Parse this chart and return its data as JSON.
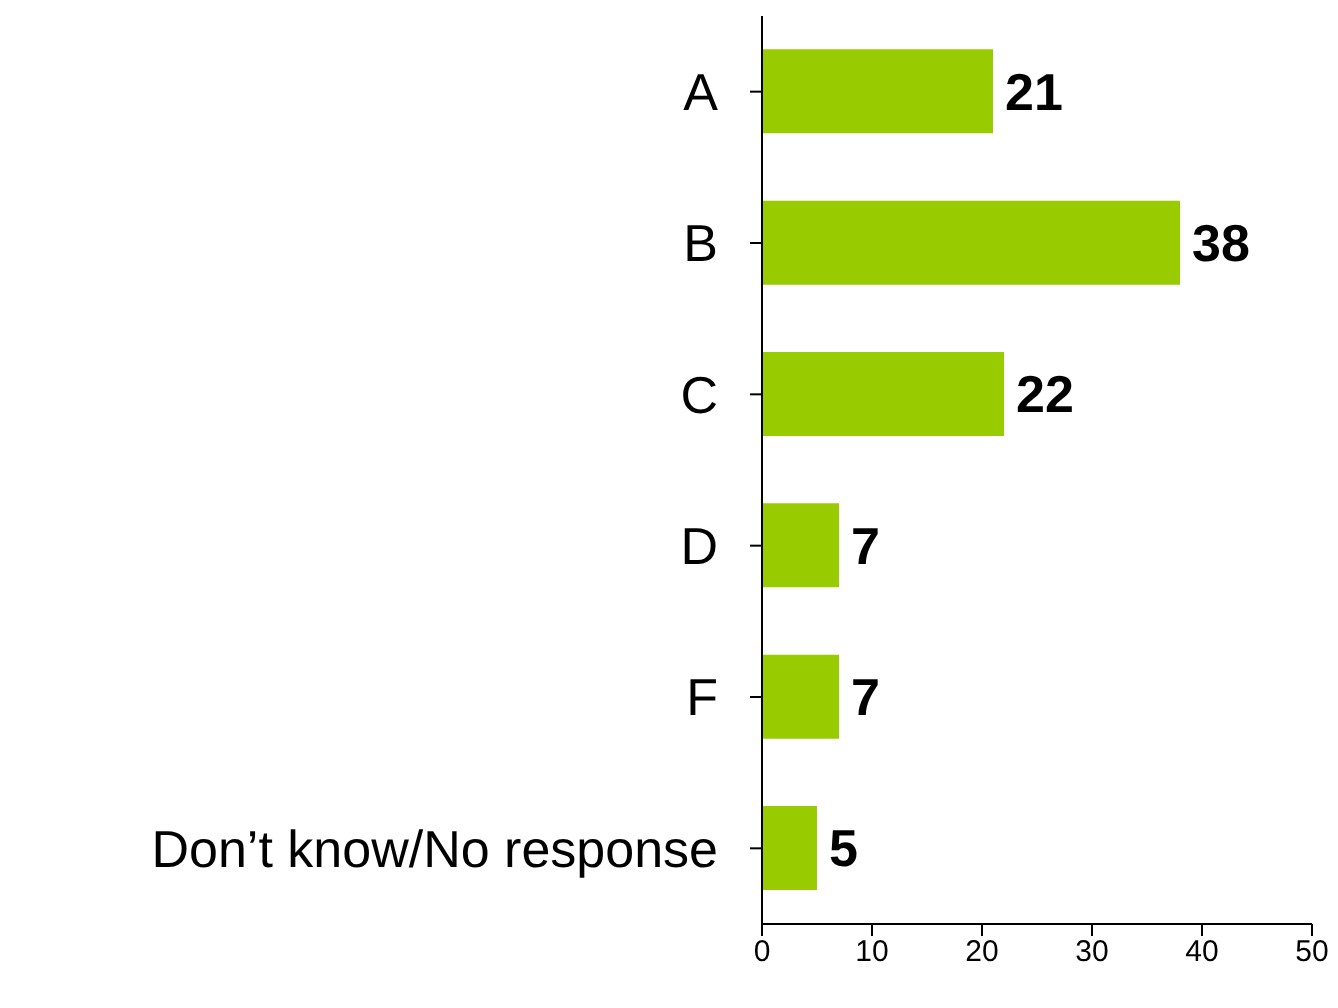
{
  "chart_data": {
    "type": "bar",
    "orientation": "horizontal",
    "categories": [
      "A",
      "B",
      "C",
      "D",
      "F",
      "Don’t know/No response"
    ],
    "values": [
      21,
      38,
      22,
      7,
      7,
      5
    ],
    "color": "#99cc00",
    "xlim": [
      0,
      50
    ],
    "xticks": [
      0,
      10,
      20,
      30,
      40,
      50
    ],
    "data_labels": true
  }
}
